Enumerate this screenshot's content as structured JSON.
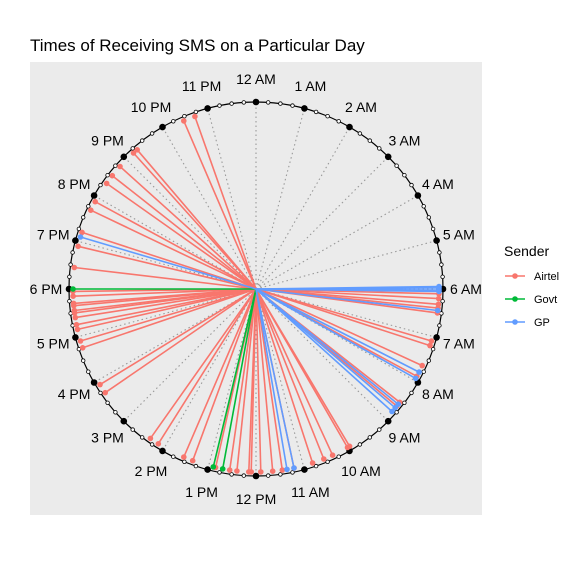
{
  "chart_data": {
    "type": "radial-time",
    "title": "Times of Receiving SMS on a Particular Day",
    "hour_labels": [
      "12 AM",
      "1 AM",
      "2 AM",
      "3 AM",
      "4 AM",
      "5 AM",
      "6 AM",
      "7 AM",
      "8 AM",
      "9 AM",
      "10 AM",
      "11 AM",
      "12 PM",
      "1 PM",
      "2 PM",
      "3 PM",
      "4 PM",
      "5 PM",
      "6 PM",
      "7 PM",
      "8 PM",
      "9 PM",
      "10 PM",
      "11 PM"
    ],
    "clock_range_hours": [
      0,
      24
    ],
    "legend": {
      "title": "Sender",
      "position": "right",
      "entries": [
        {
          "name": "Airtel",
          "color": "#F8766D"
        },
        {
          "name": "Govt",
          "color": "#00BA38"
        },
        {
          "name": "GP",
          "color": "#619CFF"
        }
      ]
    },
    "panel_background": "#EBEBEB",
    "series": [
      {
        "name": "Airtel",
        "color": "#F8766D",
        "times_hours": [
          6.1,
          6.2,
          6.32,
          6.4,
          6.5,
          7.1,
          7.2,
          7.65,
          7.9,
          8.55,
          8.65,
          9.95,
          10.0,
          10.35,
          10.55,
          10.8,
          11.2,
          11.45,
          11.65,
          11.9,
          12.1,
          12.15,
          12.4,
          12.55,
          12.85,
          13.35,
          13.55,
          14.15,
          14.35,
          15.7,
          15.9,
          16.75,
          16.9,
          17.15,
          17.25,
          17.4,
          17.5,
          17.55,
          17.65,
          17.7,
          17.85,
          17.95,
          18.45,
          18.9,
          19.2,
          19.7,
          19.9,
          20.35,
          20.55,
          20.8,
          21.2,
          21.3,
          22.45,
          22.7
        ]
      },
      {
        "name": "Govt",
        "color": "#00BA38",
        "times_hours": [
          12.7,
          12.9,
          18.0
        ]
      },
      {
        "name": "GP",
        "color": "#619CFF",
        "times_hours": [
          5.95,
          5.98,
          6.02,
          6.05,
          6.45,
          7.8,
          7.95,
          8.6,
          8.7,
          8.8,
          11.2,
          11.35,
          19.1
        ]
      }
    ]
  }
}
